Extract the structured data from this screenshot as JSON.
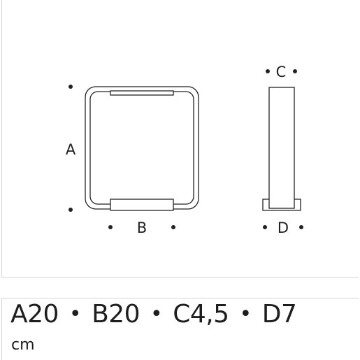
{
  "diagram": {
    "labels": {
      "a": "A",
      "b": "B",
      "c": "C",
      "d": "D"
    }
  },
  "specs": {
    "items": [
      {
        "label": "A",
        "value": "20"
      },
      {
        "label": "B",
        "value": "20"
      },
      {
        "label": "C",
        "value": "4,5"
      },
      {
        "label": "D",
        "value": "7"
      }
    ],
    "separator": "•",
    "unit": "cm"
  }
}
